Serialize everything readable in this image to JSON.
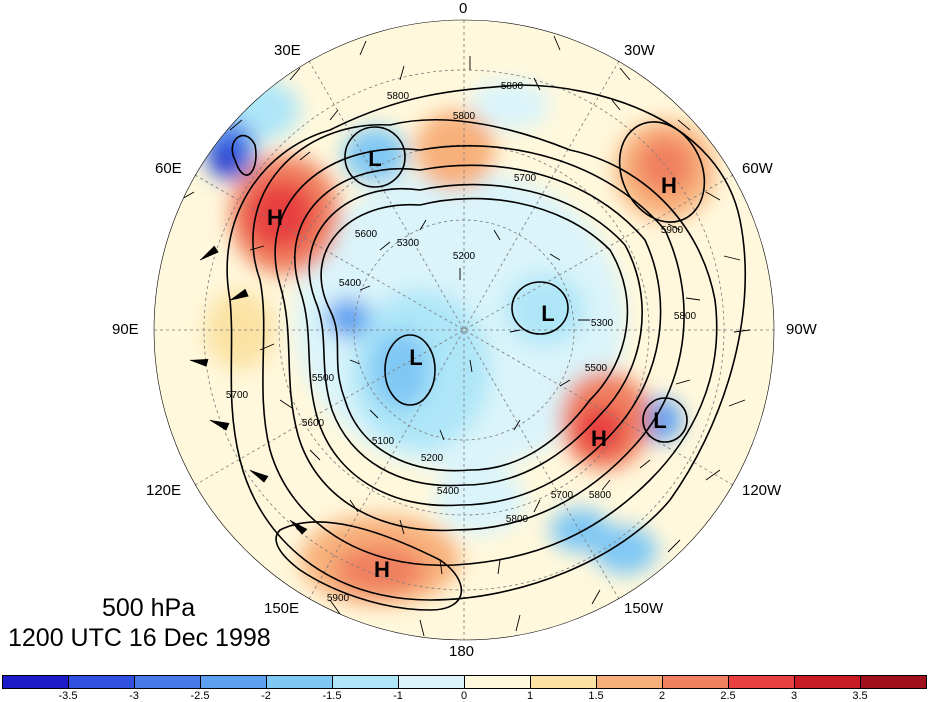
{
  "map": {
    "lon_labels": {
      "n0": "0",
      "e30": "30E",
      "w30": "30W",
      "e60": "60E",
      "w60": "60W",
      "e90": "90E",
      "w90": "90W",
      "e120": "120E",
      "w120": "120W",
      "e150": "150E",
      "w150": "150W",
      "s180": "180"
    },
    "centers": [
      {
        "id": "low-1",
        "type": "L"
      },
      {
        "id": "low-2",
        "type": "L"
      },
      {
        "id": "low-3",
        "type": "L"
      },
      {
        "id": "low-4",
        "type": "L"
      },
      {
        "id": "high-1",
        "type": "H"
      },
      {
        "id": "high-2",
        "type": "H"
      },
      {
        "id": "high-3",
        "type": "H"
      },
      {
        "id": "high-4",
        "type": "H"
      }
    ],
    "contour_labels": [
      "5800",
      "5800",
      "5800",
      "5700",
      "5900",
      "5600",
      "5300",
      "5200",
      "5400",
      "5300",
      "5800",
      "5500",
      "5700",
      "5600",
      "5500",
      "5100",
      "5200",
      "5400",
      "5800",
      "5700",
      "5800",
      "5900"
    ]
  },
  "caption": {
    "level": "500 hPa",
    "datetime": "1200 UTC 16 Dec 1998"
  },
  "colorbar": {
    "colors": [
      "#1c1cc8",
      "#3050e0",
      "#4a7ae8",
      "#5ea0f0",
      "#80c8f4",
      "#aee6f8",
      "#daf4fa",
      "#fff8dc",
      "#fbe2a4",
      "#f8b07a",
      "#f08060",
      "#e84040",
      "#c81c24",
      "#a0101c"
    ],
    "ticks": [
      "-3.5",
      "-3",
      "-2.5",
      "-2",
      "-1.5",
      "-1",
      "0",
      "1",
      "1.5",
      "2",
      "2.5",
      "3",
      "3.5"
    ]
  }
}
